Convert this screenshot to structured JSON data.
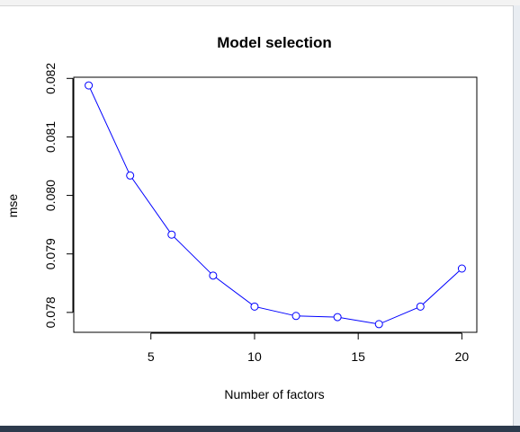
{
  "chart_data": {
    "type": "line",
    "title": "Model selection",
    "xlabel": "Number of factors",
    "ylabel": "mse",
    "x": [
      2,
      4,
      6,
      8,
      10,
      12,
      14,
      16,
      18,
      20
    ],
    "series": [
      {
        "values": [
          0.08188,
          0.08034,
          0.07933,
          0.07863,
          0.0781,
          0.07794,
          0.07792,
          0.0778,
          0.0781,
          0.07875
        ]
      }
    ],
    "xlim": [
      1.28,
      20.72
    ],
    "ylim": [
      0.07766,
      0.08202
    ],
    "x_ticks": [
      "5",
      "10",
      "15",
      "20"
    ],
    "y_ticks": [
      "0.078",
      "0.079",
      "0.080",
      "0.081",
      "0.082"
    ],
    "line_color": "#0000ff",
    "marker": "open-circle",
    "grid": false,
    "legend": "none"
  }
}
